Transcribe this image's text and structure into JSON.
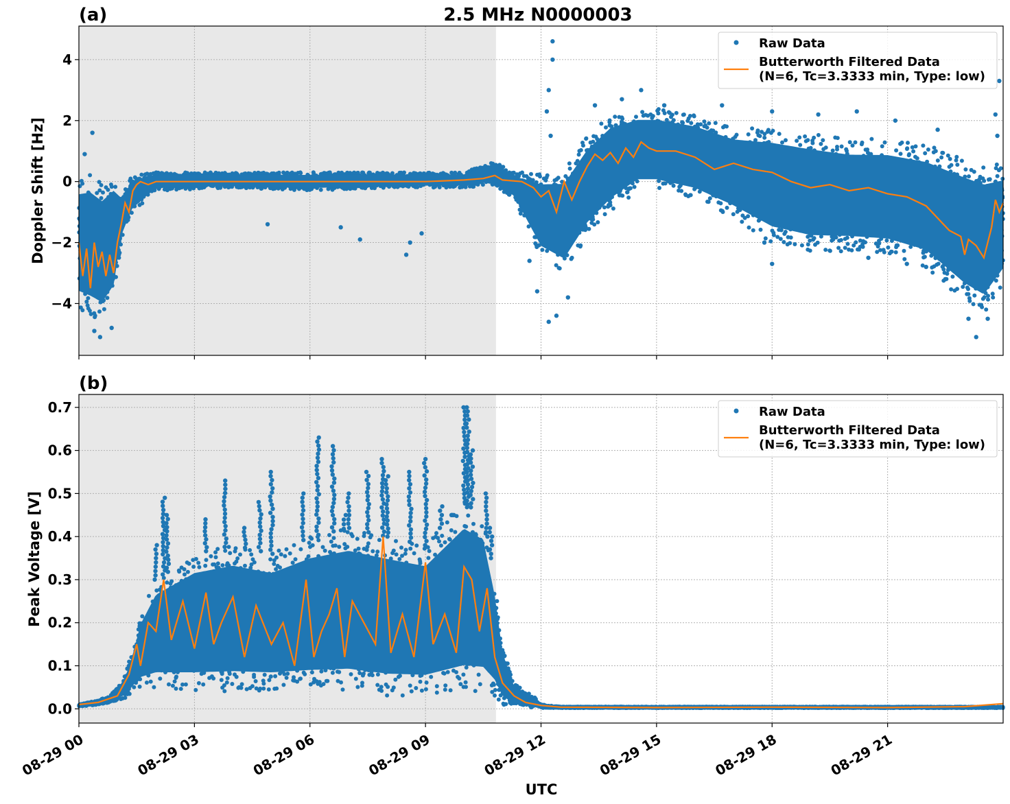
{
  "figure": {
    "title": "2.5 MHz N0000003",
    "xlabel": "UTC",
    "x_tick_labels": [
      "08-29 00",
      "08-29 03",
      "08-29 06",
      "08-29 09",
      "08-29 12",
      "08-29 15",
      "08-29 18",
      "08-29 21"
    ]
  },
  "colors": {
    "raw": "#1f77b4",
    "filtered": "#ff7f0e",
    "night_shade": "#e8e8e8",
    "grid": "#b0b0b0"
  },
  "chart_data": [
    {
      "type": "scatter",
      "panel_label": "(a)",
      "title": "2.5 MHz N0000003",
      "ylabel": "Doppler Shift [Hz]",
      "xlabel": "",
      "x_unit": "hours since 08-29 00 UTC",
      "xlim": [
        0,
        24
      ],
      "ylim": [
        -5.7,
        5.1
      ],
      "y_ticks": [
        -4,
        -2,
        0,
        2,
        4
      ],
      "y_tick_labels": [
        "−4",
        "−2",
        "0",
        "2",
        "4"
      ],
      "x_ticks": [
        0,
        3,
        6,
        9,
        12,
        15,
        18,
        21
      ],
      "shaded_x_range": [
        0,
        10.83
      ],
      "grid": true,
      "legend_position": "top-right",
      "legend": {
        "raw_label": "Raw Data",
        "filtered_label_1": "Butterworth Filtered Data",
        "filtered_label_2": "(N=6, Tc=3.3333 min, Type: low)"
      },
      "series": [
        {
          "name": "Raw Data",
          "kind": "scatter",
          "color": "#1f77b4",
          "envelope": {
            "x": [
              0,
              0.3,
              0.6,
              0.9,
              1.1,
              1.4,
              2,
              4,
              6,
              8,
              10,
              10.8,
              11.3,
              12,
              12.6,
              13.2,
              13.8,
              14.5,
              15,
              16,
              17,
              18,
              19,
              20,
              21,
              22,
              23,
              23.5,
              24
            ],
            "upper": [
              0.2,
              0.3,
              0.0,
              0.3,
              -0.3,
              0.2,
              0.3,
              0.3,
              0.3,
              0.3,
              0.3,
              0.7,
              0.3,
              0.3,
              0.4,
              1.5,
              2.2,
              2.4,
              2.4,
              2.2,
              1.8,
              1.8,
              1.6,
              1.4,
              1.4,
              1.2,
              0.8,
              0.6,
              0.6
            ],
            "lower": [
              -4.2,
              -4.4,
              -4.6,
              -4.0,
              -2.0,
              -1.0,
              -0.3,
              -0.2,
              -0.3,
              -0.2,
              -0.2,
              -0.1,
              -0.6,
              -2.5,
              -3.0,
              -1.8,
              -1.0,
              -0.3,
              -0.3,
              -0.6,
              -1.2,
              -2.0,
              -2.3,
              -2.3,
              -2.4,
              -2.8,
              -4.0,
              -4.4,
              -3.4
            ]
          },
          "outliers": [
            {
              "x": 0.35,
              "y": 1.6
            },
            {
              "x": 0.15,
              "y": 0.9
            },
            {
              "x": 0.55,
              "y": -5.1
            },
            {
              "x": 0.4,
              "y": -4.9
            },
            {
              "x": 0.85,
              "y": -4.8
            },
            {
              "x": 12.3,
              "y": 4.6
            },
            {
              "x": 12.3,
              "y": 4.0
            },
            {
              "x": 12.2,
              "y": 3.0
            },
            {
              "x": 12.15,
              "y": 2.3
            },
            {
              "x": 12.25,
              "y": 1.5
            },
            {
              "x": 12.2,
              "y": -4.6
            },
            {
              "x": 12.4,
              "y": -4.4
            },
            {
              "x": 11.9,
              "y": -3.6
            },
            {
              "x": 12.7,
              "y": -3.8
            },
            {
              "x": 11.7,
              "y": -2.6
            },
            {
              "x": 14.6,
              "y": 3.0
            },
            {
              "x": 14.1,
              "y": 2.7
            },
            {
              "x": 13.4,
              "y": 2.5
            },
            {
              "x": 15.2,
              "y": 2.5
            },
            {
              "x": 16.7,
              "y": 2.5
            },
            {
              "x": 18.0,
              "y": 2.3
            },
            {
              "x": 19.2,
              "y": 2.2
            },
            {
              "x": 20.2,
              "y": 2.3
            },
            {
              "x": 21.2,
              "y": 2.0
            },
            {
              "x": 22.3,
              "y": 1.7
            },
            {
              "x": 17.8,
              "y": -2.0
            },
            {
              "x": 18.0,
              "y": -2.7
            },
            {
              "x": 20.5,
              "y": -2.5
            },
            {
              "x": 21.5,
              "y": -2.7
            },
            {
              "x": 22.0,
              "y": -2.8
            },
            {
              "x": 22.5,
              "y": -3.2
            },
            {
              "x": 23.1,
              "y": -4.5
            },
            {
              "x": 23.3,
              "y": -5.1
            },
            {
              "x": 23.6,
              "y": -4.5
            },
            {
              "x": 23.9,
              "y": 3.3
            },
            {
              "x": 23.8,
              "y": 2.2
            },
            {
              "x": 23.85,
              "y": 1.5
            },
            {
              "x": 8.5,
              "y": -2.4
            },
            {
              "x": 8.6,
              "y": -2.0
            },
            {
              "x": 8.9,
              "y": -1.7
            },
            {
              "x": 7.3,
              "y": -1.9
            },
            {
              "x": 4.9,
              "y": -1.4
            },
            {
              "x": 6.8,
              "y": -1.5
            }
          ]
        },
        {
          "name": "Butterworth Filtered Data (N=6, Tc=3.3333 min, Type: low)",
          "kind": "line",
          "color": "#ff7f0e",
          "x": [
            0,
            0.1,
            0.2,
            0.3,
            0.4,
            0.5,
            0.6,
            0.7,
            0.8,
            0.9,
            1.0,
            1.1,
            1.2,
            1.3,
            1.4,
            1.5,
            1.6,
            1.8,
            2,
            3,
            4,
            5,
            6,
            7,
            8,
            9,
            10,
            10.5,
            10.8,
            11.0,
            11.5,
            11.8,
            12.0,
            12.2,
            12.4,
            12.6,
            12.8,
            13.0,
            13.2,
            13.4,
            13.6,
            13.8,
            14.0,
            14.2,
            14.4,
            14.6,
            14.8,
            15.0,
            15.5,
            16.0,
            16.5,
            17.0,
            17.5,
            18.0,
            18.5,
            19.0,
            19.5,
            20.0,
            20.5,
            21.0,
            21.5,
            22.0,
            22.3,
            22.6,
            22.9,
            23.0,
            23.1,
            23.3,
            23.5,
            23.7,
            23.8,
            23.9,
            24.0
          ],
          "y": [
            -2.0,
            -3.1,
            -2.2,
            -3.5,
            -2.0,
            -2.8,
            -2.3,
            -3.1,
            -2.4,
            -3.0,
            -2.0,
            -1.4,
            -0.7,
            -1.0,
            -0.3,
            -0.1,
            0.0,
            -0.1,
            0.0,
            0.0,
            0.0,
            0.0,
            0.0,
            0.0,
            0.0,
            0.0,
            0.05,
            0.1,
            0.2,
            0.05,
            0.0,
            -0.2,
            -0.5,
            -0.3,
            -1.0,
            0.0,
            -0.6,
            0.0,
            0.5,
            0.9,
            0.7,
            0.95,
            0.6,
            1.1,
            0.8,
            1.3,
            1.1,
            1.0,
            1.0,
            0.8,
            0.4,
            0.6,
            0.4,
            0.3,
            0.0,
            -0.2,
            -0.1,
            -0.3,
            -0.2,
            -0.4,
            -0.5,
            -0.8,
            -1.2,
            -1.6,
            -1.8,
            -2.4,
            -1.9,
            -2.1,
            -2.5,
            -1.5,
            -0.6,
            -1.0,
            -0.7
          ]
        }
      ]
    },
    {
      "type": "scatter",
      "panel_label": "(b)",
      "title": "",
      "ylabel": "Peak Voltage [V]",
      "xlabel": "UTC",
      "x_unit": "hours since 08-29 00 UTC",
      "xlim": [
        0,
        24
      ],
      "ylim": [
        -0.033,
        0.73
      ],
      "y_ticks": [
        0.0,
        0.1,
        0.2,
        0.3,
        0.4,
        0.5,
        0.6,
        0.7
      ],
      "y_tick_labels": [
        "0.0",
        "0.1",
        "0.2",
        "0.3",
        "0.4",
        "0.5",
        "0.6",
        "0.7"
      ],
      "x_ticks": [
        0,
        3,
        6,
        9,
        12,
        15,
        18,
        21
      ],
      "shaded_x_range": [
        0,
        10.83
      ],
      "grid": true,
      "legend_position": "top-right",
      "legend": {
        "raw_label": "Raw Data",
        "filtered_label_1": "Butterworth Filtered Data",
        "filtered_label_2": "(N=6, Tc=3.3333 min, Type: low)"
      },
      "series": [
        {
          "name": "Raw Data",
          "kind": "scatter",
          "color": "#1f77b4",
          "envelope": {
            "x": [
              0,
              0.5,
              0.8,
              1.0,
              1.2,
              1.4,
              1.6,
              2.0,
              3,
              4,
              5,
              6,
              7,
              8,
              9,
              10,
              10.5,
              10.8,
              11.0,
              11.3,
              11.8,
              12.0,
              12.5,
              24
            ],
            "upper": [
              0.01,
              0.02,
              0.03,
              0.05,
              0.08,
              0.14,
              0.22,
              0.3,
              0.36,
              0.38,
              0.36,
              0.4,
              0.42,
              0.4,
              0.38,
              0.48,
              0.45,
              0.3,
              0.15,
              0.06,
              0.03,
              0.01,
              0.005,
              0.005
            ],
            "lower": [
              0.005,
              0.01,
              0.015,
              0.02,
              0.025,
              0.04,
              0.05,
              0.05,
              0.04,
              0.04,
              0.04,
              0.04,
              0.04,
              0.03,
              0.03,
              0.04,
              0.04,
              0.03,
              0.01,
              0.005,
              0.003,
              0.002,
              0.002,
              0.002
            ]
          },
          "spikes": [
            {
              "x": 2.2,
              "y": 0.49
            },
            {
              "x": 2.3,
              "y": 0.45
            },
            {
              "x": 3.3,
              "y": 0.44
            },
            {
              "x": 3.8,
              "y": 0.53
            },
            {
              "x": 4.7,
              "y": 0.48
            },
            {
              "x": 5.0,
              "y": 0.55
            },
            {
              "x": 5.8,
              "y": 0.5
            },
            {
              "x": 6.2,
              "y": 0.63
            },
            {
              "x": 6.6,
              "y": 0.61
            },
            {
              "x": 7.0,
              "y": 0.5
            },
            {
              "x": 7.5,
              "y": 0.55
            },
            {
              "x": 7.9,
              "y": 0.58
            },
            {
              "x": 8.0,
              "y": 0.54
            },
            {
              "x": 8.6,
              "y": 0.55
            },
            {
              "x": 9.0,
              "y": 0.58
            },
            {
              "x": 9.4,
              "y": 0.47
            },
            {
              "x": 10.0,
              "y": 0.7
            },
            {
              "x": 10.1,
              "y": 0.7
            },
            {
              "x": 10.2,
              "y": 0.6
            },
            {
              "x": 10.6,
              "y": 0.5
            },
            {
              "x": 10.7,
              "y": 0.42
            },
            {
              "x": 2.0,
              "y": 0.38
            },
            {
              "x": 4.3,
              "y": 0.42
            },
            {
              "x": 6.9,
              "y": 0.45
            },
            {
              "x": 9.7,
              "y": 0.45
            }
          ]
        },
        {
          "name": "Butterworth Filtered Data (N=6, Tc=3.3333 min, Type: low)",
          "kind": "line",
          "color": "#ff7f0e",
          "x": [
            0,
            0.5,
            1.0,
            1.3,
            1.5,
            1.6,
            1.8,
            2.0,
            2.2,
            2.4,
            2.7,
            3.0,
            3.3,
            3.5,
            3.7,
            4.0,
            4.3,
            4.6,
            5.0,
            5.3,
            5.6,
            5.9,
            6.1,
            6.3,
            6.5,
            6.7,
            6.9,
            7.1,
            7.4,
            7.7,
            7.9,
            8.1,
            8.4,
            8.7,
            9.0,
            9.2,
            9.5,
            9.8,
            10.0,
            10.2,
            10.4,
            10.6,
            10.8,
            11.0,
            11.3,
            11.6,
            12.0,
            12.5,
            15,
            18,
            21,
            23,
            24
          ],
          "y": [
            0.01,
            0.015,
            0.03,
            0.08,
            0.15,
            0.1,
            0.2,
            0.18,
            0.3,
            0.16,
            0.25,
            0.14,
            0.27,
            0.15,
            0.2,
            0.26,
            0.12,
            0.24,
            0.15,
            0.2,
            0.1,
            0.3,
            0.12,
            0.18,
            0.22,
            0.28,
            0.12,
            0.25,
            0.2,
            0.15,
            0.4,
            0.13,
            0.22,
            0.12,
            0.34,
            0.15,
            0.22,
            0.13,
            0.33,
            0.3,
            0.18,
            0.28,
            0.12,
            0.06,
            0.03,
            0.015,
            0.008,
            0.004,
            0.003,
            0.004,
            0.003,
            0.005,
            0.012
          ]
        }
      ]
    }
  ]
}
